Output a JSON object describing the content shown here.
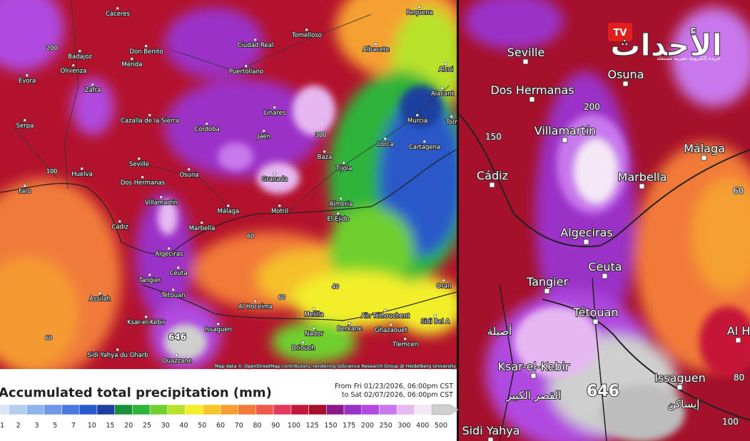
{
  "left_map": {
    "cities": [
      "Cáceres",
      "Requena",
      "Tomelloso",
      "Ciudad Real",
      "Albacete",
      "Badajoz",
      "Don Benito",
      "Mérida",
      "Olivenza",
      "Puertollano",
      "Alcoi",
      "Evora",
      "Zafra",
      "Alacant",
      "Linares",
      "Murcia",
      "Serpa",
      "Cazalla de la Sierra",
      "Córdoba",
      "Jaén",
      "Torr",
      "Cartagena",
      "Lorca",
      "Baza",
      "Seville",
      "Tíjola",
      "Huelva",
      "Osuna",
      "Granada",
      "Dos Hermanas",
      "Faro",
      "Almeria",
      "Villamartín",
      "Motril",
      "Málaga",
      "El Ejido",
      "Cádiz",
      "Marbella",
      "Algeciras",
      "Ceuta",
      "Tangier",
      "Tétouan",
      "Oran",
      "Assilah",
      "Al Hoceima",
      "Melilla",
      "Aïn Témouchent",
      "Ksar-el-Kebir",
      "Issaguen",
      "Nador",
      "Berkane",
      "Ghazaouet",
      "Sidi Bel A",
      "Tlemcen",
      "Driouch",
      "Sidi Yahya du Gharb",
      "Ouazzane"
    ],
    "contour_labels": [
      "200",
      "300",
      "100",
      "60",
      "40",
      "60",
      "60"
    ],
    "peak": "646",
    "attribution": "Map data © OpenStreetMap contributors, rendering GIScience Research Group @ Heidelberg University"
  },
  "right_map": {
    "cities": [
      "Seville",
      "Osuna",
      "Dos Hermanas",
      "Villamartín",
      "Cádiz",
      "Marbella",
      "Málaga",
      "Algeciras",
      "Ceuta",
      "Tangier",
      "Tétouan",
      "Ksar-el-Kebir",
      "Issaguen",
      "Sidi Yahya",
      "Al H"
    ],
    "arabic_labels": [
      "أصيلة",
      "القصر الكبير",
      "إيساكن"
    ],
    "contour_labels": [
      "150",
      "200",
      "60",
      "80",
      "100"
    ],
    "peak": "646"
  },
  "legend": {
    "title": "Accumulated total precipitation (mm)",
    "period_from": "From Fri 01/23/2026, 06:00pm CST",
    "period_to": "to Sat 02/07/2026, 06:00pm CST",
    "ticks": [
      1,
      2,
      3,
      5,
      7,
      10,
      15,
      20,
      25,
      30,
      40,
      50,
      60,
      70,
      80,
      90,
      100,
      125,
      150,
      175,
      200,
      250,
      300,
      400,
      500
    ],
    "colors": [
      "#d9e4f2",
      "#b4cdee",
      "#8fb3ec",
      "#6f97e8",
      "#4b79e0",
      "#2a59c9",
      "#1f3f9e",
      "#1c8f3a",
      "#2fb33a",
      "#6fcf2e",
      "#b8e22a",
      "#f2ef2a",
      "#f7c72a",
      "#f5a030",
      "#f27a38",
      "#ef5a4a",
      "#e23a5a",
      "#c61838",
      "#a5102a",
      "#8a1a8a",
      "#9b30c8",
      "#b04ae0",
      "#c878ec",
      "#e6b8f2",
      "#f4e8f6",
      "#cfcfcf"
    ]
  },
  "logo": {
    "name": "الأحداث",
    "tv": "TV",
    "tagline": "جريدة إلكترونية مغربية مستقلة"
  }
}
